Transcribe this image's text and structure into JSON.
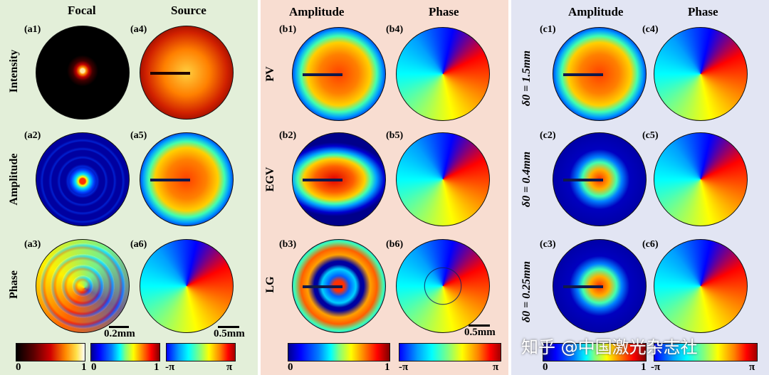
{
  "panel_a": {
    "bg": "#e3efd9",
    "col_headers": [
      "Focal",
      "Source"
    ],
    "row_labels": [
      "Intensity",
      "Amplitude",
      "Phase"
    ],
    "labels": [
      "(a1)",
      "(a4)",
      "(a2)",
      "(a5)",
      "(a3)",
      "(a6)"
    ],
    "scalebars": [
      "0.2mm",
      "0.5mm"
    ],
    "colorbars": [
      {
        "map": "hot",
        "ticks": [
          "0",
          "1"
        ]
      },
      {
        "map": "jet",
        "ticks": [
          "0",
          "1"
        ]
      },
      {
        "map": "phase",
        "ticks": [
          "-π",
          "π"
        ]
      }
    ]
  },
  "panel_b": {
    "bg": "#f8ddd1",
    "col_headers": [
      "Amplitude",
      "Phase"
    ],
    "row_labels": [
      "PV",
      "EGV",
      "LG"
    ],
    "labels": [
      "(b1)",
      "(b4)",
      "(b2)",
      "(b5)",
      "(b3)",
      "(b6)"
    ],
    "scalebar": "0.5mm",
    "colorbars": [
      {
        "map": "jet",
        "ticks": [
          "0",
          "1"
        ]
      },
      {
        "map": "phase",
        "ticks": [
          "-π",
          "π"
        ]
      }
    ]
  },
  "panel_c": {
    "bg": "#e2e5f3",
    "col_headers": [
      "Amplitude",
      "Phase"
    ],
    "row_labels": [
      "δ0 = 1.5mm",
      "δ0 = 0.4mm",
      "δ0 = 0.25mm"
    ],
    "labels": [
      "(c1)",
      "(c4)",
      "(c2)",
      "(c5)",
      "(c3)",
      "(c6)"
    ],
    "colorbars": [
      {
        "map": "jet",
        "ticks": [
          "0",
          "1"
        ]
      },
      {
        "map": "phase",
        "ticks": [
          "-π",
          "π"
        ]
      }
    ]
  },
  "watermark": "知乎 @中国激光杂志社"
}
